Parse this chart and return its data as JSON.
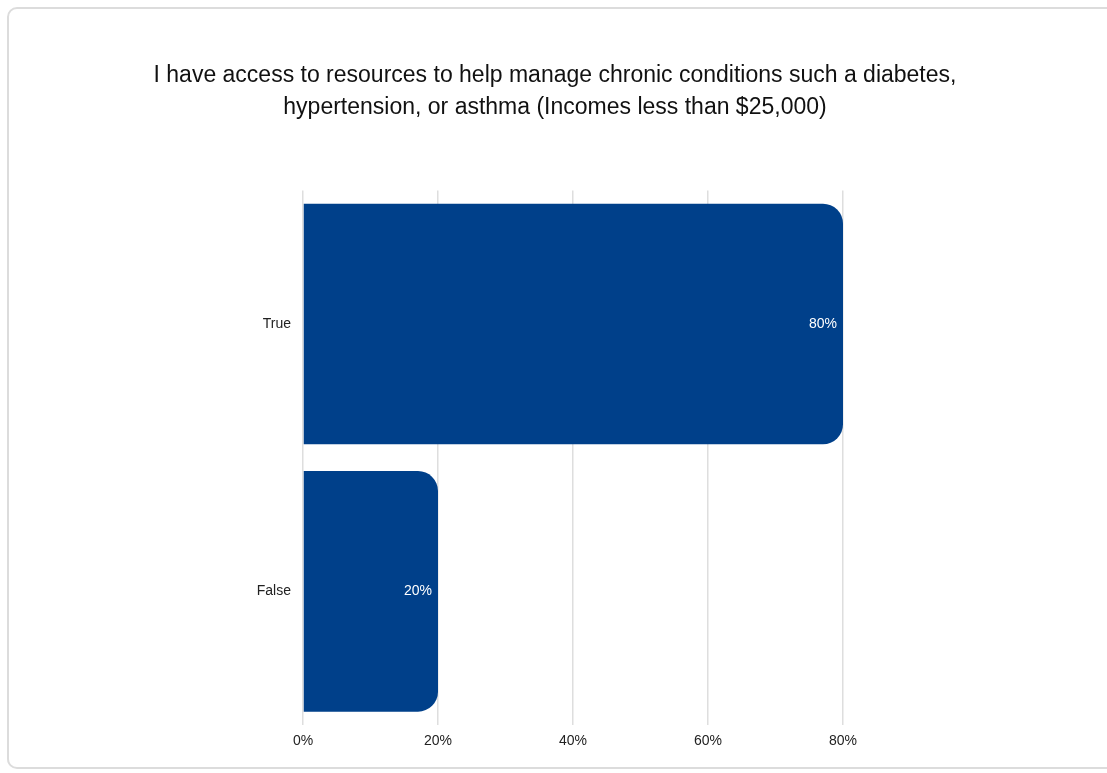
{
  "chart_data": {
    "type": "bar",
    "orientation": "horizontal",
    "title": "I have access to resources to help manage chronic conditions such a diabetes, hypertension, or asthma (Incomes less than $25,000)",
    "categories": [
      "True",
      "False"
    ],
    "values": [
      80,
      20
    ],
    "color": "#00408a",
    "value_labels": [
      "80%",
      "20%"
    ],
    "xlim": [
      0,
      80
    ],
    "xticks": [
      {
        "value": 0,
        "label": "0%"
      },
      {
        "value": 20,
        "label": "20%"
      },
      {
        "value": 40,
        "label": "40%"
      },
      {
        "value": 60,
        "label": "60%"
      },
      {
        "value": 80,
        "label": "80%"
      }
    ],
    "grid": "x"
  }
}
